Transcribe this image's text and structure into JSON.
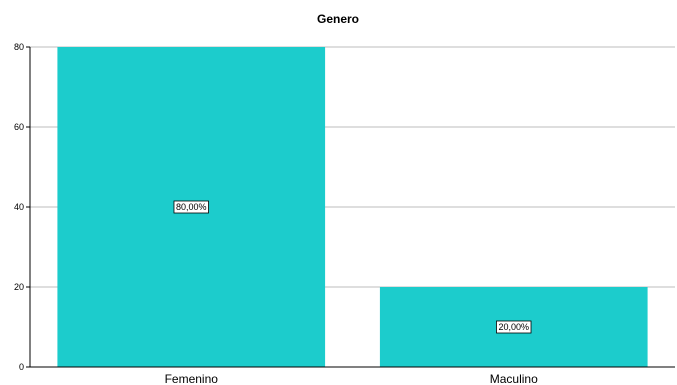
{
  "chart_data": {
    "type": "bar",
    "title": "Genero",
    "categories": [
      "Femenino",
      "Maculino"
    ],
    "values": [
      80,
      20
    ],
    "data_labels": [
      "80,00%",
      "20,00%"
    ],
    "ylim": [
      0,
      80
    ],
    "yticks": [
      0,
      20,
      40,
      60,
      80
    ],
    "ytick_labels": [
      "0",
      "20",
      "40",
      "60",
      "80"
    ],
    "grid": true,
    "bar_color": "#1ccccc",
    "xlabel": "",
    "ylabel": ""
  }
}
